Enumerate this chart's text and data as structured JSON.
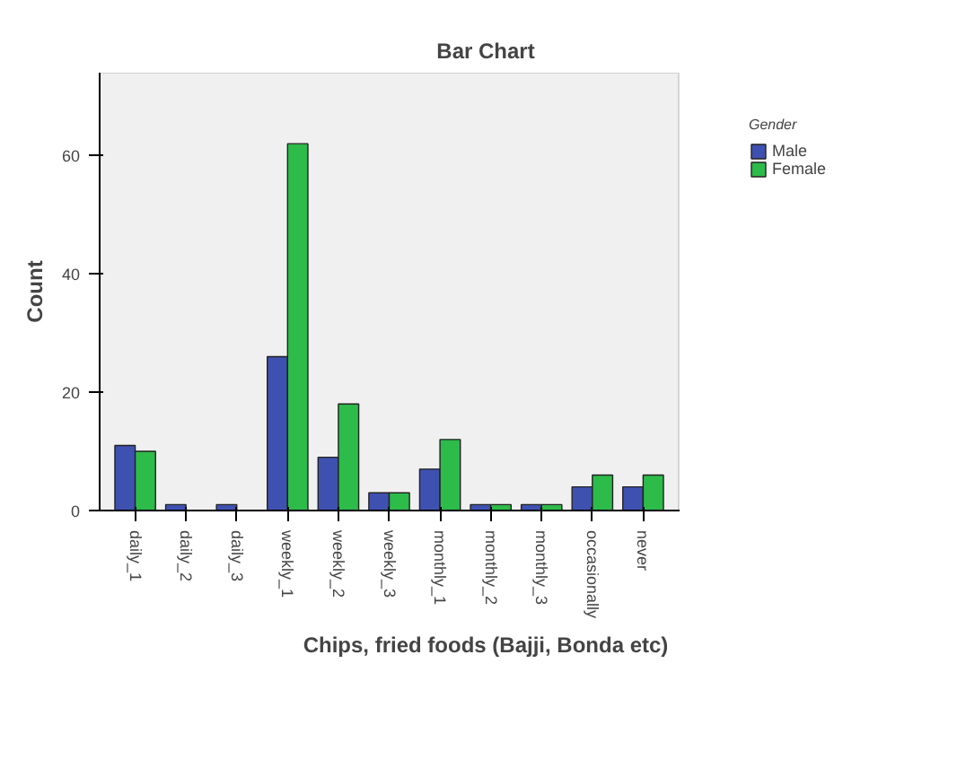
{
  "chart_data": {
    "type": "bar",
    "title": "Bar Chart",
    "xlabel": "Chips, fried foods (Bajji, Bonda etc)",
    "ylabel": "Count",
    "legend_title": "Gender",
    "categories": [
      "daily_1",
      "daily_2",
      "daily_3",
      "weekly_1",
      "weekly_2",
      "weekly_3",
      "monthly_1",
      "monthly_2",
      "monthly_3",
      "occasionally",
      "never"
    ],
    "series": [
      {
        "name": "Male",
        "color": "#3f51b0",
        "values": [
          11,
          1,
          1,
          26,
          9,
          3,
          7,
          1,
          1,
          4,
          4
        ]
      },
      {
        "name": "Female",
        "color": "#2dbb4a",
        "values": [
          10,
          0,
          0,
          62,
          18,
          3,
          12,
          1,
          1,
          6,
          6
        ]
      }
    ],
    "ylim": [
      0,
      74
    ],
    "yticks": [
      0,
      20,
      40,
      60
    ],
    "legend": "top right"
  }
}
